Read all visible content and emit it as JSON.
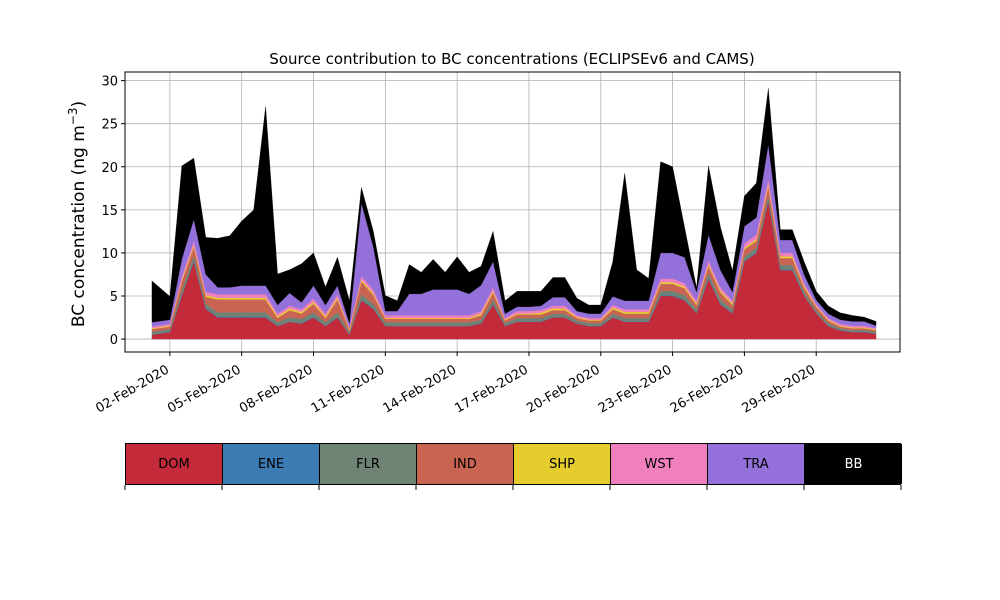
{
  "chart_data": {
    "type": "area",
    "title": "Source contribution to BC concentrations (ECLIPSEv6 and CAMS)",
    "ylabel_base": "BC concentration (ng m",
    "ylabel_sup": "−3",
    "ylabel_close": ")",
    "xlabel": "",
    "ylim": [
      -1.5,
      31
    ],
    "xlim": [
      "2020-01-31T03:00",
      "2020-03-03T12:00"
    ],
    "yticks": [
      0,
      5,
      10,
      15,
      20,
      25,
      30
    ],
    "xticks": [
      {
        "date": "2020-02-02",
        "label": "02-Feb-2020"
      },
      {
        "date": "2020-02-05",
        "label": "05-Feb-2020"
      },
      {
        "date": "2020-02-08",
        "label": "08-Feb-2020"
      },
      {
        "date": "2020-02-11",
        "label": "11-Feb-2020"
      },
      {
        "date": "2020-02-14",
        "label": "14-Feb-2020"
      },
      {
        "date": "2020-02-17",
        "label": "17-Feb-2020"
      },
      {
        "date": "2020-02-20",
        "label": "20-Feb-2020"
      },
      {
        "date": "2020-02-23",
        "label": "23-Feb-2020"
      },
      {
        "date": "2020-02-26",
        "label": "26-Feb-2020"
      },
      {
        "date": "2020-02-29",
        "label": "29-Feb-2020"
      }
    ],
    "grid": true,
    "legend_placement": "bottom colorbar",
    "x": [
      "2020-02-01T06:00",
      "2020-02-02T00:00",
      "2020-02-02T12:00",
      "2020-02-03T00:00",
      "2020-02-03T12:00",
      "2020-02-04T00:00",
      "2020-02-04T12:00",
      "2020-02-05T00:00",
      "2020-02-05T12:00",
      "2020-02-06T00:00",
      "2020-02-06T12:00",
      "2020-02-07T00:00",
      "2020-02-07T12:00",
      "2020-02-08T00:00",
      "2020-02-08T12:00",
      "2020-02-09T00:00",
      "2020-02-09T12:00",
      "2020-02-10T00:00",
      "2020-02-10T12:00",
      "2020-02-11T00:00",
      "2020-02-11T12:00",
      "2020-02-12T00:00",
      "2020-02-12T12:00",
      "2020-02-13T00:00",
      "2020-02-13T12:00",
      "2020-02-14T00:00",
      "2020-02-14T12:00",
      "2020-02-15T00:00",
      "2020-02-15T12:00",
      "2020-02-16T00:00",
      "2020-02-16T12:00",
      "2020-02-17T00:00",
      "2020-02-17T12:00",
      "2020-02-18T00:00",
      "2020-02-18T12:00",
      "2020-02-19T00:00",
      "2020-02-19T12:00",
      "2020-02-20T00:00",
      "2020-02-20T12:00",
      "2020-02-21T00:00",
      "2020-02-21T12:00",
      "2020-02-22T00:00",
      "2020-02-22T12:00",
      "2020-02-23T00:00",
      "2020-02-23T12:00",
      "2020-02-24T00:00",
      "2020-02-24T12:00",
      "2020-02-25T00:00",
      "2020-02-25T12:00",
      "2020-02-26T00:00",
      "2020-02-26T12:00",
      "2020-02-27T00:00",
      "2020-02-27T12:00",
      "2020-02-28T00:00",
      "2020-02-28T12:00",
      "2020-02-29T00:00",
      "2020-02-29T12:00",
      "2020-03-01T00:00",
      "2020-03-01T12:00",
      "2020-03-02T00:00",
      "2020-03-02T12:00"
    ],
    "series": [
      {
        "name": "DOM",
        "color": "#c42b3a",
        "values": [
          0.5,
          0.8,
          5.0,
          9.0,
          3.5,
          2.5,
          2.5,
          2.5,
          2.5,
          2.5,
          1.5,
          2.0,
          1.8,
          2.5,
          1.5,
          2.5,
          0.5,
          4.5,
          3.5,
          1.5,
          1.5,
          1.5,
          1.5,
          1.5,
          1.5,
          1.5,
          1.5,
          1.8,
          4.0,
          1.5,
          2.0,
          2.0,
          2.0,
          2.5,
          2.5,
          1.8,
          1.5,
          1.5,
          2.5,
          2.0,
          2.0,
          2.0,
          5.0,
          5.0,
          4.5,
          3.0,
          7.0,
          4.0,
          3.0,
          9.0,
          10.0,
          16.0,
          8.0,
          8.0,
          5.0,
          3.0,
          1.5,
          1.0,
          0.8,
          0.8,
          0.6
        ]
      },
      {
        "name": "ENE",
        "color": "#3c7bb3",
        "values": [
          0.05,
          0.05,
          0.1,
          0.1,
          0.1,
          0.1,
          0.1,
          0.1,
          0.1,
          0.1,
          0.05,
          0.05,
          0.05,
          0.1,
          0.05,
          0.1,
          0.05,
          0.1,
          0.1,
          0.05,
          0.05,
          0.05,
          0.05,
          0.05,
          0.05,
          0.05,
          0.05,
          0.05,
          0.1,
          0.05,
          0.05,
          0.05,
          0.05,
          0.05,
          0.05,
          0.05,
          0.05,
          0.05,
          0.05,
          0.05,
          0.05,
          0.05,
          0.1,
          0.1,
          0.1,
          0.05,
          0.1,
          0.1,
          0.05,
          0.1,
          0.1,
          0.1,
          0.1,
          0.1,
          0.05,
          0.05,
          0.05,
          0.05,
          0.05,
          0.05,
          0.05
        ]
      },
      {
        "name": "FLR",
        "color": "#6e8374",
        "values": [
          0.3,
          0.3,
          0.6,
          0.6,
          0.5,
          0.5,
          0.5,
          0.5,
          0.5,
          0.5,
          0.4,
          0.5,
          0.5,
          0.5,
          0.4,
          0.5,
          0.2,
          0.6,
          0.5,
          0.4,
          0.4,
          0.4,
          0.4,
          0.4,
          0.4,
          0.4,
          0.4,
          0.4,
          0.5,
          0.3,
          0.4,
          0.4,
          0.4,
          0.4,
          0.4,
          0.3,
          0.3,
          0.3,
          0.4,
          0.4,
          0.4,
          0.4,
          0.5,
          0.5,
          0.5,
          0.4,
          0.6,
          0.5,
          0.4,
          0.5,
          0.5,
          0.6,
          0.5,
          0.5,
          0.4,
          0.3,
          0.3,
          0.2,
          0.2,
          0.2,
          0.2
        ]
      },
      {
        "name": "IND",
        "color": "#c96452",
        "values": [
          0.3,
          0.3,
          1.0,
          1.0,
          0.8,
          1.5,
          1.5,
          1.5,
          1.5,
          1.5,
          0.5,
          0.8,
          0.6,
          1.0,
          0.5,
          1.5,
          0.3,
          1.5,
          1.0,
          0.4,
          0.4,
          0.4,
          0.4,
          0.4,
          0.4,
          0.4,
          0.4,
          0.5,
          0.8,
          0.3,
          0.4,
          0.4,
          0.4,
          0.4,
          0.4,
          0.3,
          0.3,
          0.3,
          0.5,
          0.5,
          0.5,
          0.5,
          0.8,
          0.8,
          0.8,
          0.5,
          0.8,
          0.8,
          0.5,
          0.8,
          0.8,
          1.0,
          0.8,
          0.8,
          0.5,
          0.4,
          0.3,
          0.2,
          0.2,
          0.2,
          0.2
        ]
      },
      {
        "name": "SHP",
        "color": "#e6cd2e",
        "values": [
          0.1,
          0.1,
          0.2,
          0.2,
          0.2,
          0.2,
          0.2,
          0.2,
          0.2,
          0.2,
          0.2,
          0.2,
          0.2,
          0.2,
          0.2,
          0.2,
          0.1,
          0.2,
          0.2,
          0.1,
          0.1,
          0.1,
          0.1,
          0.1,
          0.1,
          0.1,
          0.1,
          0.2,
          0.2,
          0.1,
          0.1,
          0.1,
          0.2,
          0.2,
          0.2,
          0.1,
          0.1,
          0.1,
          0.2,
          0.2,
          0.2,
          0.2,
          0.2,
          0.2,
          0.2,
          0.2,
          0.2,
          0.2,
          0.2,
          0.2,
          0.2,
          0.3,
          0.2,
          0.2,
          0.2,
          0.1,
          0.1,
          0.1,
          0.1,
          0.1,
          0.1
        ]
      },
      {
        "name": "WST",
        "color": "#f07fbd",
        "values": [
          0.2,
          0.2,
          0.4,
          0.5,
          0.4,
          0.4,
          0.4,
          0.4,
          0.4,
          0.4,
          0.3,
          0.3,
          0.3,
          0.4,
          0.3,
          0.4,
          0.2,
          0.4,
          0.4,
          0.3,
          0.3,
          0.3,
          0.3,
          0.3,
          0.3,
          0.3,
          0.3,
          0.3,
          0.4,
          0.2,
          0.3,
          0.3,
          0.3,
          0.3,
          0.3,
          0.2,
          0.2,
          0.2,
          0.3,
          0.3,
          0.3,
          0.3,
          0.4,
          0.4,
          0.4,
          0.3,
          0.4,
          0.4,
          0.3,
          0.5,
          0.5,
          0.6,
          0.4,
          0.4,
          0.3,
          0.2,
          0.2,
          0.2,
          0.2,
          0.2,
          0.1
        ]
      },
      {
        "name": "TRA",
        "color": "#9470db",
        "values": [
          0.5,
          0.5,
          2.0,
          2.5,
          2.0,
          0.8,
          0.8,
          1.0,
          1.0,
          1.0,
          1.0,
          1.5,
          0.8,
          1.5,
          1.0,
          1.0,
          0.5,
          8.5,
          5.0,
          0.5,
          0.5,
          2.5,
          2.5,
          3.0,
          3.0,
          3.0,
          2.5,
          3.0,
          3.0,
          0.5,
          0.5,
          0.5,
          0.5,
          1.0,
          1.0,
          0.5,
          0.5,
          0.5,
          1.0,
          1.0,
          1.0,
          1.0,
          3.0,
          3.0,
          3.0,
          1.0,
          3.0,
          2.0,
          1.0,
          2.0,
          2.0,
          4.0,
          1.5,
          1.5,
          1.0,
          0.5,
          0.5,
          0.5,
          0.5,
          0.5,
          0.3
        ]
      },
      {
        "name": "BB",
        "color": "#000000",
        "values": [
          4.8,
          2.7,
          10.8,
          7.1,
          4.3,
          5.7,
          6.0,
          7.5,
          8.8,
          20.8,
          3.6,
          2.7,
          4.5,
          3.8,
          2.1,
          3.3,
          2.6,
          1.8,
          1.8,
          1.8,
          1.2,
          3.4,
          2.5,
          3.5,
          2.0,
          3.8,
          2.5,
          2.2,
          3.5,
          1.5,
          1.8,
          1.8,
          1.7,
          2.3,
          2.3,
          1.5,
          1.0,
          1.0,
          4.0,
          14.8,
          3.6,
          2.6,
          10.6,
          10.0,
          3.5,
          0.5,
          8.0,
          5.0,
          2.5,
          3.5,
          4.0,
          6.5,
          1.2,
          1.2,
          1.5,
          1.0,
          0.9,
          0.8,
          0.7,
          0.5,
          0.5
        ]
      }
    ]
  }
}
